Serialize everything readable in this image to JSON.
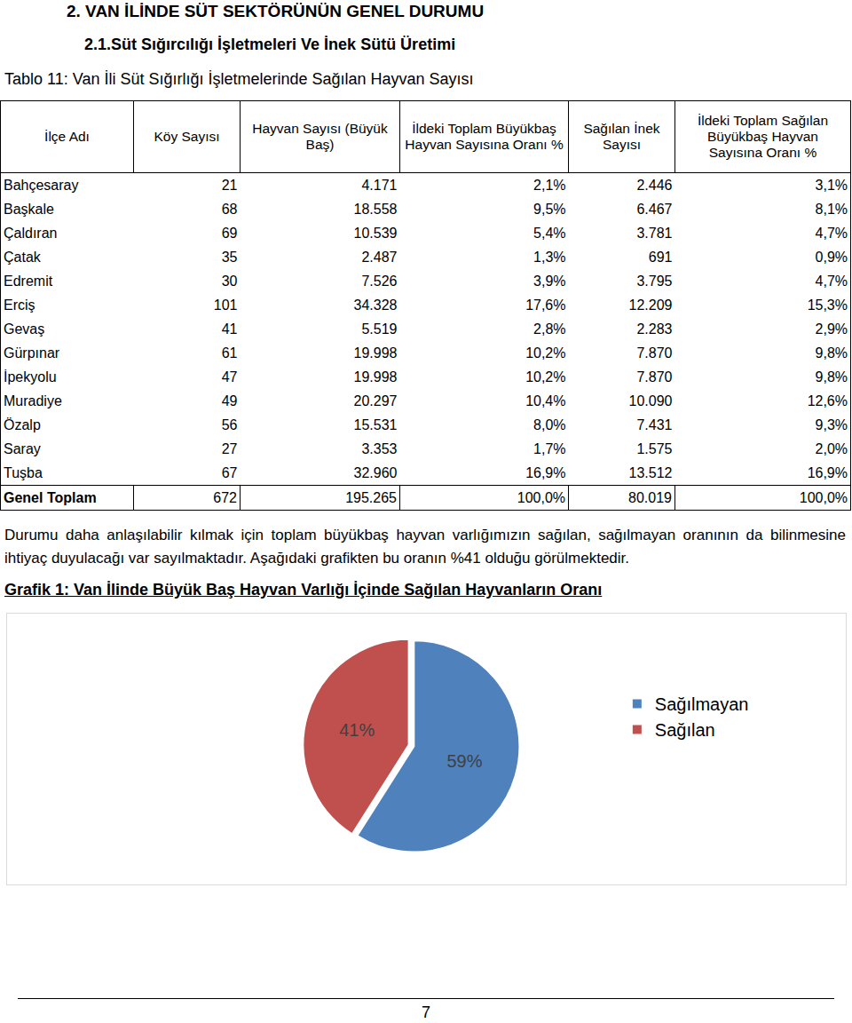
{
  "headings": [
    "2. VAN İLİNDE SÜT SEKTÖRÜNÜN GENEL DURUMU",
    "2.1.Süt Sığırcılığı İşletmeleri Ve İnek Sütü Üretimi"
  ],
  "table_caption": "Tablo 11: Van İli Süt Sığırlığı İşletmelerinde Sağılan Hayvan Sayısı",
  "table": {
    "header": [
      "İlçe Adı",
      "Köy Sayısı",
      "Hayvan Sayısı (Büyük Baş)",
      "İldeki Toplam Büyükbaş Hayvan Sayısına Oranı %",
      "Sağılan İnek Sayısı",
      "İldeki Toplam Sağılan Büyükbaş Hayvan Sayısına Oranı %"
    ],
    "rows": [
      [
        "Bahçesaray",
        "21",
        "4.171",
        "2,1%",
        "2.446",
        "3,1%"
      ],
      [
        "Başkale",
        "68",
        "18.558",
        "9,5%",
        "6.467",
        "8,1%"
      ],
      [
        "Çaldıran",
        "69",
        "10.539",
        "5,4%",
        "3.781",
        "4,7%"
      ],
      [
        "Çatak",
        "35",
        "2.487",
        "1,3%",
        "691",
        "0,9%"
      ],
      [
        "Edremit",
        "30",
        "7.526",
        "3,9%",
        "3.795",
        "4,7%"
      ],
      [
        "Erciş",
        "101",
        "34.328",
        "17,6%",
        "12.209",
        "15,3%"
      ],
      [
        "Gevaş",
        "41",
        "5.519",
        "2,8%",
        "2.283",
        "2,9%"
      ],
      [
        "Gürpınar",
        "61",
        "19.998",
        "10,2%",
        "7.870",
        "9,8%"
      ],
      [
        "İpekyolu",
        "47",
        "19.998",
        "10,2%",
        "7.870",
        "9,8%"
      ],
      [
        "Muradiye",
        "49",
        "20.297",
        "10,4%",
        "10.090",
        "12,6%"
      ],
      [
        "Özalp",
        "56",
        "15.531",
        "8,0%",
        "7.431",
        "9,3%"
      ],
      [
        "Saray",
        "27",
        "3.353",
        "1,7%",
        "1.575",
        "2,0%"
      ],
      [
        "Tuşba",
        "67",
        "32.960",
        "16,9%",
        "13.512",
        "16,9%"
      ]
    ],
    "total": [
      "Genel Toplam",
      "672",
      "195.265",
      "100,0%",
      "80.019",
      "100,0%"
    ]
  },
  "paragraph": "Durumu daha anlaşılabilir kılmak için toplam büyükbaş hayvan varlığımızın sağılan, sağılmayan oranının da bilinmesine ihtiyaç duyulacağı var sayılmaktadır. Aşağıdaki grafikten bu oranın %41 olduğu görülmektedir.",
  "chart_data": {
    "type": "pie",
    "title": "Grafik 1: Van İlinde Büyük Baş Hayvan Varlığı İçinde Sağılan Hayvanların Oranı",
    "categories": [
      "Sağılmayan",
      "Sağılan"
    ],
    "values": [
      59,
      41
    ],
    "value_labels": [
      "59%",
      "41%"
    ],
    "colors": [
      "#4f81bd",
      "#c0504d"
    ],
    "legend": "right"
  },
  "page_number": "7"
}
